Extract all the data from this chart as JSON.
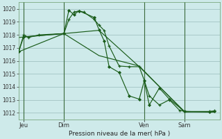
{
  "background_color": "#ceeaea",
  "grid_color": "#a8c8c8",
  "line_color": "#1a5c1a",
  "title": "Pression niveau de la mer( hPa )",
  "ylim": [
    1011.5,
    1020.5
  ],
  "yticks": [
    1012,
    1013,
    1014,
    1015,
    1016,
    1017,
    1018,
    1019,
    1020
  ],
  "xlim": [
    0,
    40
  ],
  "xtick_labels": [
    "Jeu",
    "Dim",
    "Ven",
    "Sam"
  ],
  "xtick_positions": [
    1,
    9,
    25,
    33
  ],
  "vline_positions": [
    1,
    9,
    25,
    33
  ],
  "series1": {
    "x": [
      0,
      1,
      2,
      4,
      9,
      10,
      11,
      12,
      13,
      15,
      16,
      17,
      18,
      20,
      22,
      24,
      25,
      26,
      28,
      30,
      32,
      33,
      38,
      39
    ],
    "y": [
      1016.7,
      1018.0,
      1017.8,
      1018.0,
      1018.1,
      1019.2,
      1019.75,
      1019.85,
      1019.75,
      1019.2,
      1018.75,
      1018.35,
      1017.15,
      1015.6,
      1015.55,
      1015.55,
      1014.5,
      1013.3,
      1012.6,
      1013.0,
      1012.2,
      1012.1,
      1012.1,
      1012.15
    ],
    "marker": "+"
  },
  "series2": {
    "x": [
      0,
      1,
      9,
      10,
      11,
      12,
      15,
      16,
      17,
      18,
      20,
      22,
      24,
      25,
      26,
      28,
      30,
      33,
      38,
      39
    ],
    "y": [
      1016.7,
      1017.85,
      1018.1,
      1019.9,
      1019.55,
      1019.85,
      1019.35,
      1018.4,
      1017.55,
      1015.55,
      1015.1,
      1013.3,
      1013.05,
      1014.45,
      1012.6,
      1013.9,
      1013.05,
      1012.1,
      1012.05,
      1012.1
    ],
    "marker": "D"
  },
  "series3": {
    "x": [
      0,
      9,
      16,
      24,
      33,
      39
    ],
    "y": [
      1017.8,
      1018.1,
      1018.35,
      1015.55,
      1012.1,
      1012.05
    ]
  },
  "series4": {
    "x": [
      0,
      9,
      16,
      24,
      33,
      39
    ],
    "y": [
      1016.7,
      1018.1,
      1016.4,
      1015.6,
      1012.05,
      1012.1
    ]
  }
}
